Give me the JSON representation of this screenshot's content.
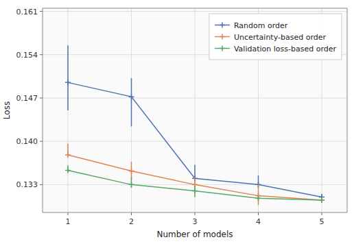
{
  "chart_data": {
    "type": "line",
    "x": [
      1,
      2,
      3,
      4,
      5
    ],
    "series": [
      {
        "name": "Random order",
        "color": "#4C72B0",
        "marker": "plus",
        "line_style": "solid",
        "values": [
          0.1495,
          0.1472,
          0.134,
          0.133,
          0.131
        ],
        "yerr_minus": [
          0.0045,
          0.0048,
          0.0005,
          0.0005,
          0.0005
        ],
        "yerr_plus": [
          0.006,
          0.003,
          0.0022,
          0.0015,
          0.0005
        ]
      },
      {
        "name": "Uncertainty-based order",
        "color": "#DD8452",
        "marker": "plus",
        "line_style": "solid",
        "values": [
          0.1378,
          0.1352,
          0.133,
          0.1312,
          0.1305
        ],
        "yerr_minus": [
          0.0003,
          0.0015,
          0.0005,
          0.0015,
          0.0003
        ],
        "yerr_plus": [
          0.0018,
          0.0015,
          0.0012,
          0.0018,
          0.0003
        ]
      },
      {
        "name": "Validation loss-based order",
        "color": "#55A868",
        "marker": "plus",
        "line_style": "solid",
        "values": [
          0.1353,
          0.133,
          0.132,
          0.1308,
          0.1305
        ],
        "yerr_minus": [
          0.0003,
          0.0005,
          0.001,
          0.0003,
          0.0003
        ],
        "yerr_plus": [
          0.0008,
          0.0012,
          0.0008,
          0.0003,
          0.0003
        ]
      }
    ],
    "xlabel": "Number of models",
    "ylabel": "Loss",
    "xlim": [
      0.6,
      5.4
    ],
    "xticks": [
      1,
      2,
      3,
      4,
      5
    ],
    "ylim": [
      0.1285,
      0.1615
    ],
    "yticks": [
      0.133,
      {
        "value": 0.14,
        "label": "0.140"
      },
      0.147,
      0.154,
      0.161
    ],
    "grid": true,
    "legend": "upper right"
  }
}
